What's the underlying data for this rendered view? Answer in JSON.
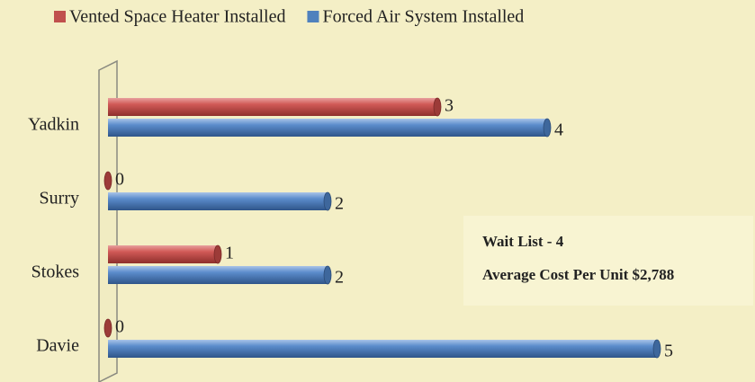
{
  "chart_data": {
    "type": "bar",
    "orientation": "horizontal",
    "categories": [
      "Yadkin",
      "Surry",
      "Stokes",
      "Davie"
    ],
    "series": [
      {
        "name": "Vented Space Heater Installed",
        "color": "#c0504d",
        "values": [
          3,
          0,
          1,
          0
        ]
      },
      {
        "name": "Forced Air System Installed",
        "color": "#4f81bd",
        "values": [
          4,
          2,
          2,
          5
        ]
      }
    ],
    "xlim": [
      0,
      5
    ],
    "annotations": [
      "Wait List - 4",
      "Average Cost Per Unit $2,788"
    ]
  }
}
